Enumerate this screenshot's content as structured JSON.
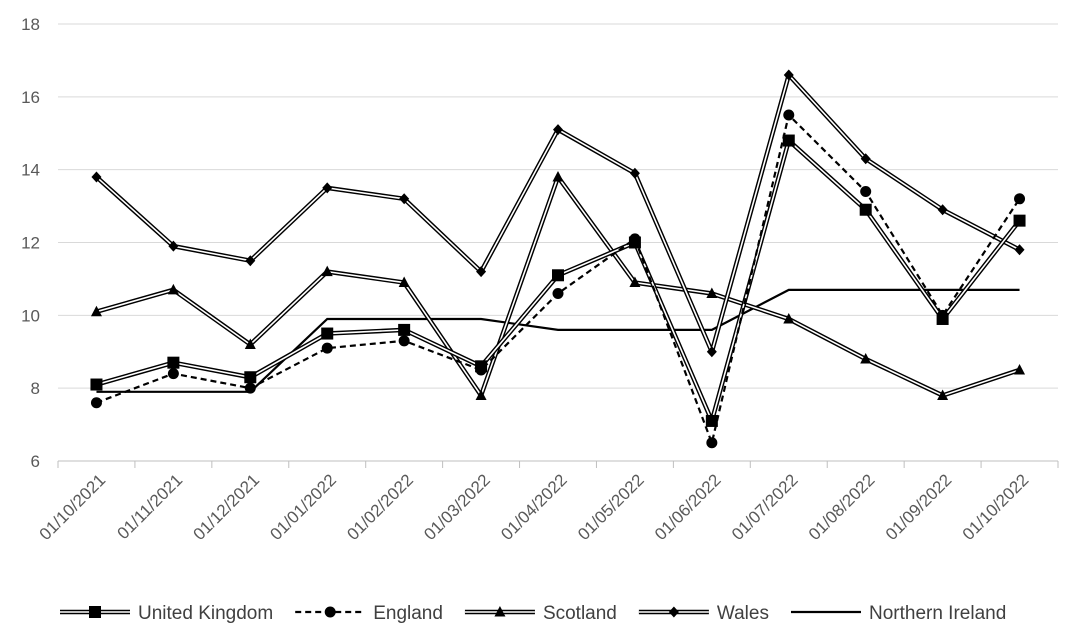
{
  "chart_data": {
    "type": "line",
    "title": "",
    "xlabel": "",
    "ylabel": "",
    "ylim": [
      6,
      18
    ],
    "yticks": [
      6,
      8,
      10,
      12,
      14,
      16,
      18
    ],
    "categories": [
      "01/10/2021",
      "01/11/2021",
      "01/12/2021",
      "01/01/2022",
      "01/02/2022",
      "01/03/2022",
      "01/04/2022",
      "01/05/2022",
      "01/06/2022",
      "01/07/2022",
      "01/08/2022",
      "01/09/2022",
      "01/10/2022"
    ],
    "grid": "horizontal",
    "legend_position": "bottom",
    "series": [
      {
        "name": "United Kingdom",
        "marker": "square",
        "style": "solid-double",
        "color": "#000000",
        "values": [
          8.1,
          8.7,
          8.3,
          9.5,
          9.6,
          8.6,
          11.1,
          12.0,
          7.1,
          14.8,
          12.9,
          9.9,
          12.6
        ]
      },
      {
        "name": "England",
        "marker": "circle",
        "style": "dashed",
        "color": "#000000",
        "values": [
          7.6,
          8.4,
          8.0,
          9.1,
          9.3,
          8.5,
          10.6,
          12.1,
          6.5,
          15.5,
          13.4,
          10.0,
          13.2
        ]
      },
      {
        "name": "Scotland",
        "marker": "triangle",
        "style": "solid-double",
        "color": "#000000",
        "values": [
          10.1,
          10.7,
          9.2,
          11.2,
          10.9,
          7.8,
          13.8,
          10.9,
          10.6,
          9.9,
          8.8,
          7.8,
          8.5
        ]
      },
      {
        "name": "Wales",
        "marker": "diamond",
        "style": "solid-double",
        "color": "#000000",
        "values": [
          13.8,
          11.9,
          11.5,
          13.5,
          13.2,
          11.2,
          15.1,
          13.9,
          9.0,
          16.6,
          14.3,
          12.9,
          11.8
        ]
      },
      {
        "name": "Northern Ireland",
        "marker": "none",
        "style": "step",
        "color": "#000000",
        "values": [
          7.9,
          7.9,
          7.9,
          9.9,
          9.9,
          9.9,
          9.6,
          9.6,
          9.6,
          10.7,
          10.7,
          10.7,
          10.7
        ]
      }
    ]
  }
}
